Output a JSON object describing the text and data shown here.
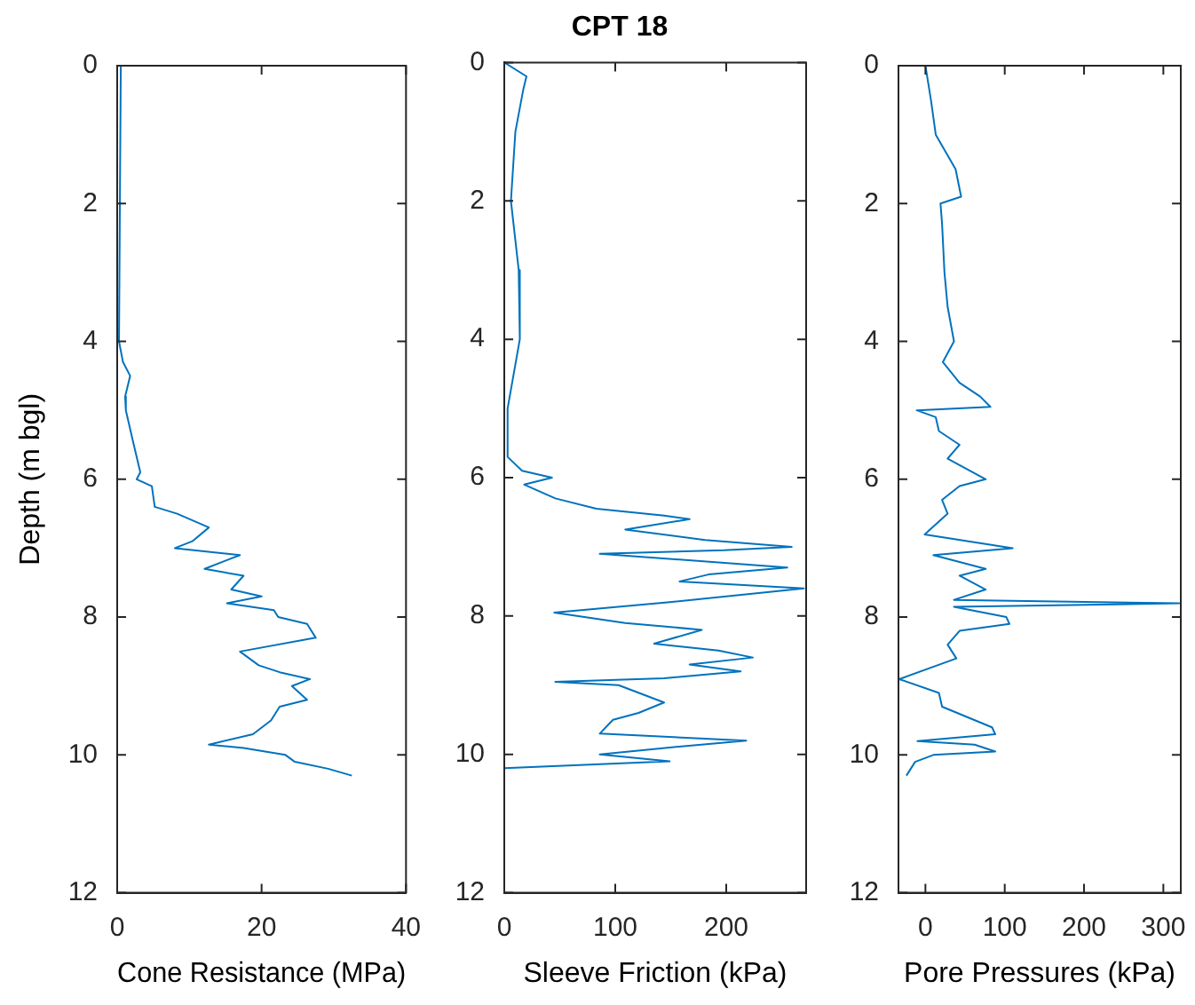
{
  "chart_data": [
    {
      "type": "line",
      "xlabel": "Cone Resistance (MPa)",
      "ylabel": "Depth (m bgl)",
      "xlim": [
        0,
        40
      ],
      "xticks": [
        0,
        20,
        40
      ],
      "ylim": [
        12,
        0
      ],
      "yticks": [
        0,
        2,
        4,
        6,
        8,
        10,
        12
      ],
      "series": [
        {
          "color": "#0072bd",
          "x": [
            0.5,
            0.25,
            0.8,
            1.8,
            1.1,
            1.2,
            2.3,
            3.2,
            2.7,
            4.8,
            5.2,
            8.3,
            12.7,
            10.4,
            8,
            17,
            12.1,
            17.5,
            15.8,
            20,
            15.2,
            21.7,
            22.3,
            26.3,
            27.5,
            17,
            19.6,
            22.5,
            26.7,
            24.2,
            26.3,
            22.5,
            21.3,
            18.8,
            12.7,
            17.5,
            23.3,
            24.6,
            29.2,
            32.5
          ],
          "values": [
            0,
            4.0,
            4.3,
            4.5,
            4.8,
            5.0,
            5.5,
            5.9,
            6.0,
            6.1,
            6.4,
            6.5,
            6.7,
            6.9,
            7.0,
            7.1,
            7.3,
            7.4,
            7.6,
            7.7,
            7.8,
            7.9,
            8.0,
            8.1,
            8.3,
            8.5,
            8.7,
            8.8,
            8.9,
            9.0,
            9.2,
            9.3,
            9.5,
            9.7,
            9.85,
            9.9,
            10.0,
            10.1,
            10.2,
            10.3
          ]
        }
      ]
    },
    {
      "type": "line",
      "title": "CPT 18",
      "xlabel": "Sleeve Friction (kPa)",
      "xlim": [
        0,
        272
      ],
      "xticks": [
        0,
        100,
        200
      ],
      "ylim": [
        12,
        0
      ],
      "yticks": [
        0,
        2,
        4,
        6,
        8,
        10,
        12
      ],
      "series": [
        {
          "color": "#0072bd",
          "x": [
            0,
            20,
            17,
            10,
            6,
            13,
            14,
            3,
            3,
            16,
            43,
            18,
            46,
            83,
            144,
            167,
            109,
            181,
            259,
            198,
            86,
            255,
            184,
            158,
            270,
            149,
            45,
            109,
            178,
            135,
            193,
            224,
            167,
            213,
            144,
            46,
            103,
            144,
            121,
            98,
            92,
            86,
            218,
            149,
            86,
            149,
            0
          ],
          "values": [
            0,
            0.2,
            0.4,
            1.0,
            2.0,
            3.0,
            4.0,
            5.0,
            5.7,
            5.9,
            6.0,
            6.1,
            6.3,
            6.45,
            6.55,
            6.6,
            6.75,
            6.9,
            7.0,
            7.05,
            7.1,
            7.3,
            7.4,
            7.5,
            7.6,
            7.8,
            7.95,
            8.1,
            8.2,
            8.4,
            8.5,
            8.6,
            8.7,
            8.8,
            8.9,
            8.95,
            9.0,
            9.25,
            9.4,
            9.5,
            9.6,
            9.7,
            9.8,
            9.9,
            10.0,
            10.1,
            10.2
          ]
        }
      ]
    },
    {
      "type": "line",
      "xlabel": "Pore Pressures (kPa)",
      "xlim": [
        -34,
        322
      ],
      "xticks": [
        0,
        100,
        200,
        300
      ],
      "ylim": [
        12,
        0
      ],
      "yticks": [
        0,
        2,
        4,
        6,
        8,
        10,
        12
      ],
      "series": [
        {
          "color": "#0072bd",
          "x": [
            0,
            7,
            13,
            38,
            45,
            19,
            21,
            24,
            28,
            36,
            22,
            43,
            69,
            82,
            -11,
            13,
            17,
            43,
            28,
            76,
            43,
            21,
            28,
            -1,
            110,
            10,
            76,
            43,
            76,
            36,
            320,
            36,
            102,
            106,
            43,
            28,
            39,
            -33,
            17,
            21,
            84,
            88,
            -10,
            62,
            88,
            10,
            -13,
            -24
          ],
          "values": [
            0,
            0.5,
            1.0,
            1.5,
            1.9,
            2.0,
            2.3,
            3.0,
            3.5,
            4.0,
            4.3,
            4.6,
            4.8,
            4.95,
            5.0,
            5.1,
            5.3,
            5.5,
            5.7,
            6.0,
            6.1,
            6.3,
            6.5,
            6.8,
            7.0,
            7.1,
            7.3,
            7.4,
            7.6,
            7.75,
            7.8,
            7.85,
            8.0,
            8.1,
            8.2,
            8.4,
            8.6,
            8.9,
            9.1,
            9.3,
            9.6,
            9.7,
            9.8,
            9.85,
            9.95,
            10.0,
            10.1,
            10.3
          ]
        }
      ]
    }
  ]
}
